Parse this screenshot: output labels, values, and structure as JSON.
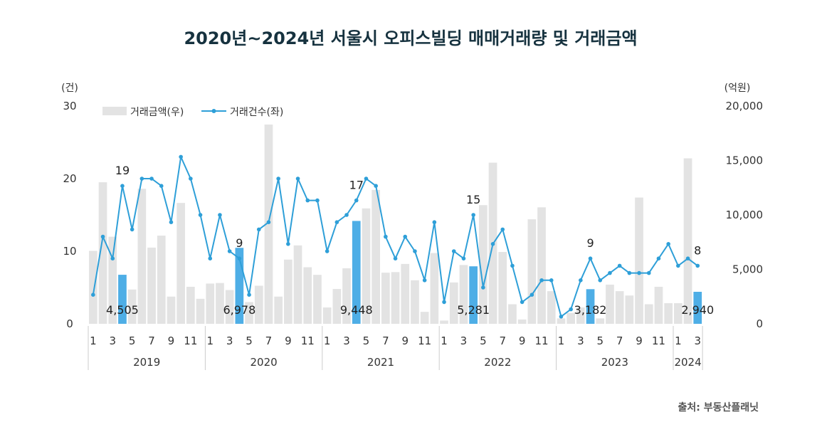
{
  "chart_data": {
    "type": "bar+line",
    "title": "2020년~2024년 서울시 오피스빌딩 매매거래량 및 거래금액",
    "source": "출처: 부동산플래닛",
    "left_axis": {
      "unit": "(건)",
      "ylim": [
        0,
        30
      ],
      "ticks": [
        "0",
        "10",
        "20",
        "30"
      ]
    },
    "right_axis": {
      "unit": "(억원)",
      "ylim": [
        0,
        20000
      ],
      "ticks": [
        "0",
        "5,000",
        "10,000",
        "15,000",
        "20,000"
      ]
    },
    "x_tick_labels": [
      "1",
      "3",
      "5",
      "7",
      "9",
      "11"
    ],
    "years": [
      "2019",
      "2020",
      "2021",
      "2022",
      "2023",
      "2024"
    ],
    "months_per_year": [
      12,
      12,
      12,
      12,
      12,
      3
    ],
    "legend": [
      {
        "name": "거래금액(우)",
        "color": "#e3e3e3"
      },
      {
        "name": "거래건수(좌)",
        "color": "#2e9fd8"
      }
    ],
    "colors": {
      "bar": "#e3e3e3",
      "bar_highlight": "#4eaee6",
      "line": "#2e9fd8",
      "title": "#16323f"
    },
    "series": [
      {
        "name": "거래금액(우)",
        "axis": "right",
        "values": [
          6700,
          13000,
          8000,
          4505,
          3150,
          12400,
          7000,
          8100,
          2500,
          11100,
          3400,
          2300,
          3700,
          3750,
          3100,
          6978,
          2000,
          3500,
          18300,
          2500,
          5900,
          7200,
          5200,
          4500,
          1500,
          3200,
          5100,
          9448,
          10600,
          12300,
          4700,
          4750,
          5500,
          4000,
          1100,
          6500,
          300,
          3800,
          5400,
          5281,
          10900,
          14800,
          6600,
          1800,
          400,
          9600,
          10700,
          3000,
          500,
          1000,
          1500,
          3182,
          500,
          3600,
          3000,
          2600,
          11600,
          1800,
          3400,
          1900,
          1900,
          15200,
          2940
        ]
      },
      {
        "name": "거래건수(좌)",
        "axis": "left",
        "values": [
          4,
          12,
          9,
          19,
          13,
          20,
          20,
          19,
          14,
          23,
          20,
          15,
          9,
          15,
          10,
          9,
          4,
          13,
          14,
          20,
          11,
          20,
          17,
          17,
          10,
          14,
          15,
          17,
          20,
          19,
          12,
          9,
          12,
          10,
          6,
          14,
          3,
          10,
          9,
          15,
          5,
          11,
          13,
          8,
          3,
          4,
          6,
          6,
          1,
          2,
          6,
          9,
          6,
          7,
          8,
          7,
          7,
          7,
          9,
          11,
          8,
          9,
          8
        ]
      }
    ],
    "highlights": [
      {
        "index": 3,
        "bar_label": "4,505",
        "line_label": "19"
      },
      {
        "index": 15,
        "bar_label": "6,978",
        "line_label": "9"
      },
      {
        "index": 27,
        "bar_label": "9,448",
        "line_label": "17"
      },
      {
        "index": 39,
        "bar_label": "5,281",
        "line_label": "15"
      },
      {
        "index": 51,
        "bar_label": "3,182",
        "line_label": "9"
      },
      {
        "index": 62,
        "bar_label": "2,940",
        "line_label": "8"
      }
    ]
  }
}
